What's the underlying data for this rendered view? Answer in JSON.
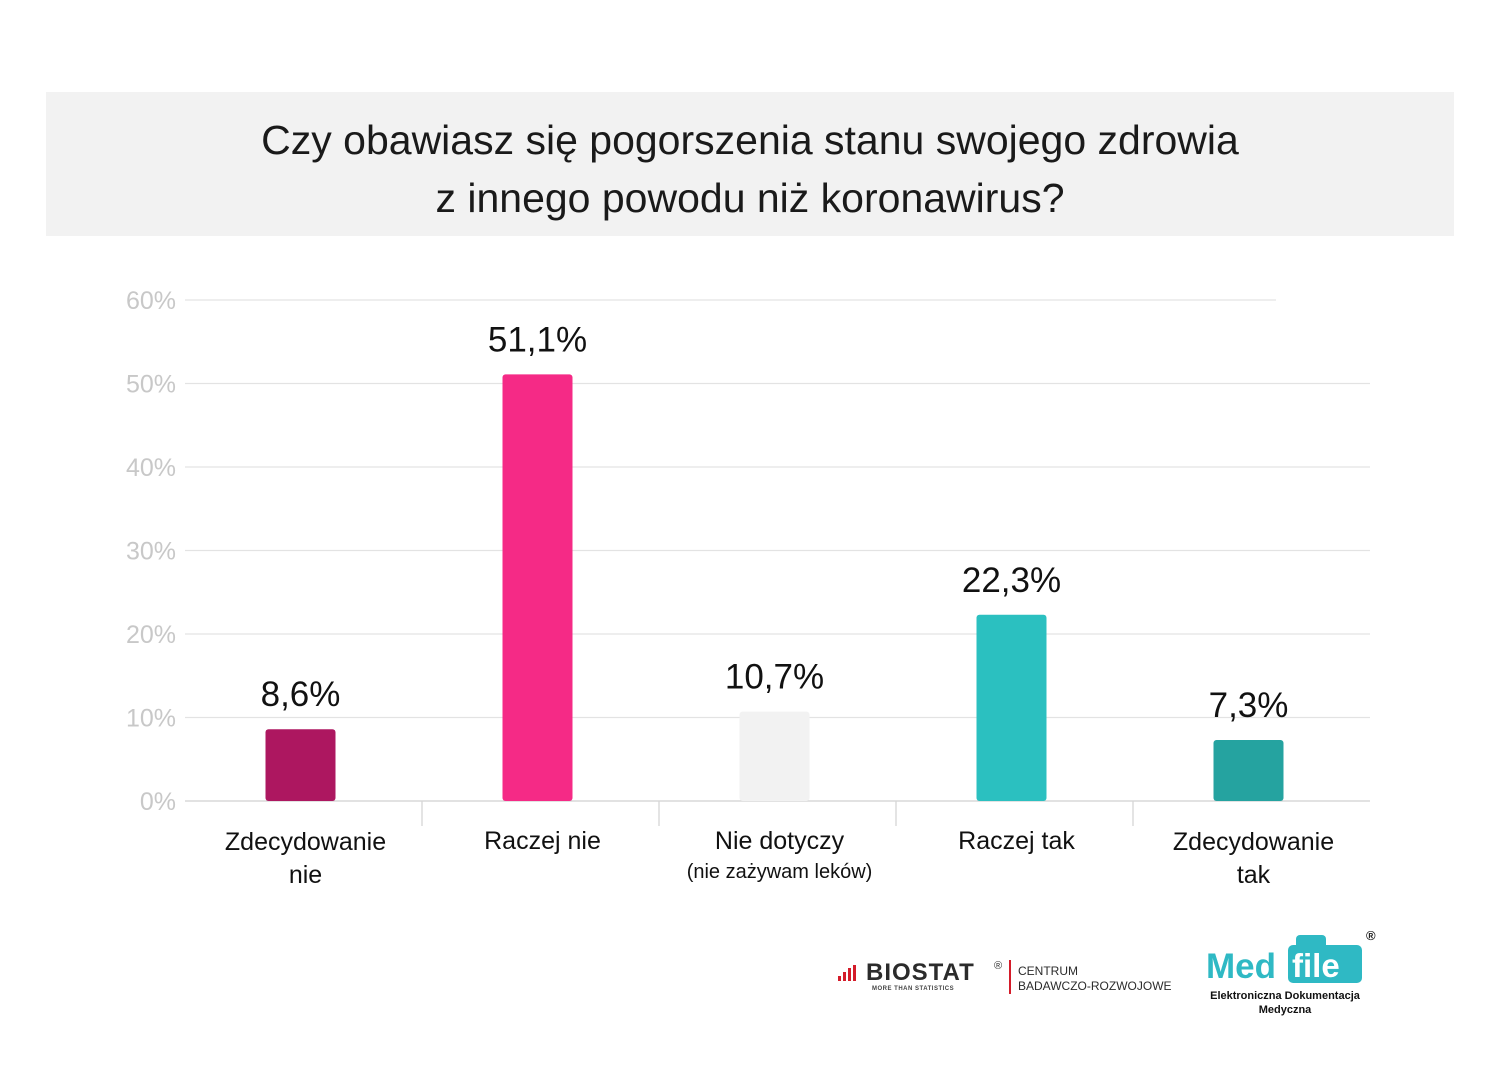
{
  "chart_data": {
    "type": "bar",
    "title": [
      "Czy obawiasz się pogorszenia stanu swojego zdrowia",
      "z innego powodu niż koronawirus?"
    ],
    "xlabel": "",
    "ylabel": "",
    "ylim": [
      0,
      60
    ],
    "yticks": [
      0,
      10,
      20,
      30,
      40,
      50,
      60
    ],
    "ytick_labels": [
      "0%",
      "10%",
      "20%",
      "30%",
      "40%",
      "50%",
      "60%"
    ],
    "grid": true,
    "legend": "none",
    "categories": [
      {
        "lines": [
          "Zdecydowanie",
          "nie"
        ],
        "note": ""
      },
      {
        "lines": [
          "Raczej nie"
        ],
        "note": ""
      },
      {
        "lines": [
          "Nie dotyczy"
        ],
        "note": "(nie zażywam leków)"
      },
      {
        "lines": [
          "Raczej tak"
        ],
        "note": ""
      },
      {
        "lines": [
          "Zdecydowanie",
          "tak"
        ],
        "note": ""
      }
    ],
    "values": [
      8.6,
      51.1,
      10.7,
      22.3,
      7.3
    ],
    "value_labels": [
      "8,6%",
      "51,1%",
      "10,7%",
      "22,3%",
      "7,3%"
    ],
    "colors": [
      "#ad1760",
      "#f52a86",
      "#f2f2f2",
      "#2bc0c0",
      "#25a3a0"
    ]
  },
  "logos": {
    "biostat": {
      "name": "BIOSTAT",
      "registered": "®",
      "tagline": "MORE THAN STATISTICS",
      "division": [
        "CENTRUM",
        "BADAWCZO-ROZWOJOWE"
      ],
      "accent": "#d41c2a"
    },
    "medfile": {
      "name_left": "Med",
      "name_right": "file",
      "registered": "®",
      "subtitle": [
        "Elektroniczna Dokumentacja",
        "Medyczna"
      ],
      "accent": "#2fb9c4"
    }
  }
}
